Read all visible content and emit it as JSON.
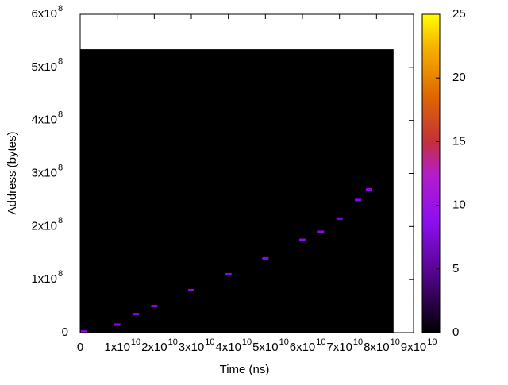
{
  "chart_data": {
    "type": "heatmap",
    "xlabel": "Time (ns)",
    "ylabel": "Address (bytes)",
    "xlim": [
      0,
      90000000000
    ],
    "ylim": [
      0,
      600000000
    ],
    "xticks": [
      0,
      {
        "value": 10000000000,
        "label": "1x10",
        "power": "10"
      },
      {
        "value": 20000000000,
        "label": "2x10",
        "power": "10"
      },
      {
        "value": 30000000000,
        "label": "3x10",
        "power": "10"
      },
      {
        "value": 40000000000,
        "label": "4x10",
        "power": "10"
      },
      {
        "value": 50000000000,
        "label": "5x10",
        "power": "10"
      },
      {
        "value": 60000000000,
        "label": "6x10",
        "power": "10"
      },
      {
        "value": 70000000000,
        "label": "7x10",
        "power": "10"
      },
      {
        "value": 80000000000,
        "label": "8x10",
        "power": "10"
      },
      {
        "value": 90000000000,
        "label": "9x10",
        "power": "10"
      }
    ],
    "yticks": [
      0,
      {
        "value": 100000000,
        "label": "1x10",
        "power": "8"
      },
      {
        "value": 200000000,
        "label": "2x10",
        "power": "8"
      },
      {
        "value": 300000000,
        "label": "3x10",
        "power": "8"
      },
      {
        "value": 400000000,
        "label": "4x10",
        "power": "8"
      },
      {
        "value": 500000000,
        "label": "5x10",
        "power": "8"
      },
      {
        "value": 600000000,
        "label": "6x10",
        "power": "8"
      }
    ],
    "zlim": [
      0,
      25
    ],
    "zticks": [
      0,
      5,
      10,
      15,
      20,
      25
    ],
    "data_xrange": [
      0,
      84600000000
    ],
    "data_yrange": [
      0,
      534000000
    ],
    "x": [
      1000000000,
      10000000000,
      15000000000,
      20000000000,
      30000000000,
      40000000000,
      50000000000,
      60000000000,
      65000000000,
      70000000000,
      75000000000,
      78000000000
    ],
    "y": [
      2000000,
      15000000,
      35000000,
      50000000,
      80000000,
      110000000,
      140000000,
      175000000,
      190000000,
      215000000,
      250000000,
      270000000
    ],
    "values": [
      8,
      8,
      7,
      8,
      8,
      7,
      8,
      7,
      8,
      6,
      7,
      8
    ]
  }
}
